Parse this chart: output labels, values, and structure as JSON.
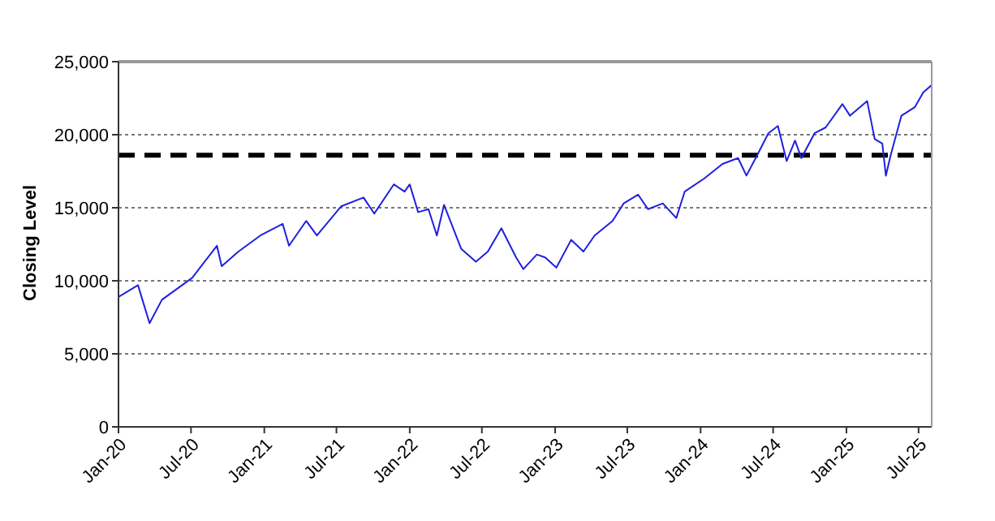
{
  "chart_data": {
    "type": "line",
    "ylabel": "Closing Level",
    "marker": "none",
    "line_style": "solid",
    "grid": "y",
    "x": [
      "2020-01-01",
      "2020-02-19",
      "2020-03-01",
      "2020-03-19",
      "2020-04-19",
      "2020-07-04",
      "2020-09-04",
      "2020-09-16",
      "2020-10-28",
      "2020-12-22",
      "2021-02-16",
      "2021-03-04",
      "2021-04-16",
      "2021-05-13",
      "2021-07-13",
      "2021-09-07",
      "2021-10-04",
      "2021-11-22",
      "2021-12-19",
      "2022-01-01",
      "2022-01-22",
      "2022-02-17",
      "2022-03-10",
      "2022-03-28",
      "2022-05-10",
      "2022-06-16",
      "2022-07-16",
      "2022-08-19",
      "2022-09-25",
      "2022-10-13",
      "2022-11-16",
      "2022-12-07",
      "2023-01-04",
      "2023-02-10",
      "2023-03-13",
      "2023-04-10",
      "2023-05-25",
      "2023-06-22",
      "2023-07-28",
      "2023-08-22",
      "2023-09-28",
      "2023-11-01",
      "2023-11-22",
      "2024-01-10",
      "2024-02-25",
      "2024-04-04",
      "2024-04-25",
      "2024-05-22",
      "2024-06-19",
      "2024-07-13",
      "2024-08-04",
      "2024-08-25",
      "2024-09-10",
      "2024-10-13",
      "2024-11-10",
      "2024-12-22",
      "2025-01-10",
      "2025-02-22",
      "2025-03-13",
      "2025-04-01",
      "2025-04-10",
      "2025-04-22",
      "2025-05-19",
      "2025-06-22",
      "2025-07-13",
      "2025-08-03"
    ],
    "series": [
      {
        "color": "#1f1fe0",
        "values": [
          8900,
          9700,
          8700,
          7100,
          8700,
          10200,
          12400,
          11000,
          12000,
          13100,
          13900,
          12400,
          14100,
          13100,
          15100,
          15700,
          14600,
          16600,
          16100,
          16600,
          14700,
          14900,
          13100,
          15200,
          12200,
          11300,
          12000,
          13600,
          11600,
          10800,
          11800,
          11600,
          10900,
          12800,
          12000,
          13100,
          14100,
          15300,
          15900,
          14900,
          15300,
          14300,
          16100,
          17000,
          18000,
          18400,
          17200,
          18600,
          20100,
          20600,
          18200,
          19600,
          18400,
          20100,
          20500,
          22100,
          21300,
          22300,
          19700,
          19400,
          17200,
          18600,
          21300,
          21900,
          22900,
          23400
        ]
      }
    ],
    "xlim": [
      "2020-01-01",
      "2025-08-03"
    ],
    "xticks": [
      {
        "value": "2020-01-01",
        "label": "Jan-20"
      },
      {
        "value": "2020-07-01",
        "label": "Jul-20"
      },
      {
        "value": "2021-01-01",
        "label": "Jan-21"
      },
      {
        "value": "2021-07-01",
        "label": "Jul-21"
      },
      {
        "value": "2022-01-01",
        "label": "Jan-22"
      },
      {
        "value": "2022-07-01",
        "label": "Jul-22"
      },
      {
        "value": "2023-01-01",
        "label": "Jan-23"
      },
      {
        "value": "2023-07-01",
        "label": "Jul-23"
      },
      {
        "value": "2024-01-01",
        "label": "Jan-24"
      },
      {
        "value": "2024-07-01",
        "label": "Jul-24"
      },
      {
        "value": "2025-01-01",
        "label": "Jan-25"
      },
      {
        "value": "2025-07-01",
        "label": "Jul-25"
      }
    ],
    "ylim": [
      0,
      25000
    ],
    "yticks": [
      {
        "value": 0,
        "label": "0"
      },
      {
        "value": 5000,
        "label": "5,000"
      },
      {
        "value": 10000,
        "label": "10,000"
      },
      {
        "value": 15000,
        "label": "15,000"
      },
      {
        "value": 20000,
        "label": "20,000"
      },
      {
        "value": 25000,
        "label": "25,000"
      }
    ],
    "ref_lines": [
      {
        "axis": "y",
        "value": 18600,
        "color": "#000000",
        "line_style": "dashed"
      }
    ]
  }
}
